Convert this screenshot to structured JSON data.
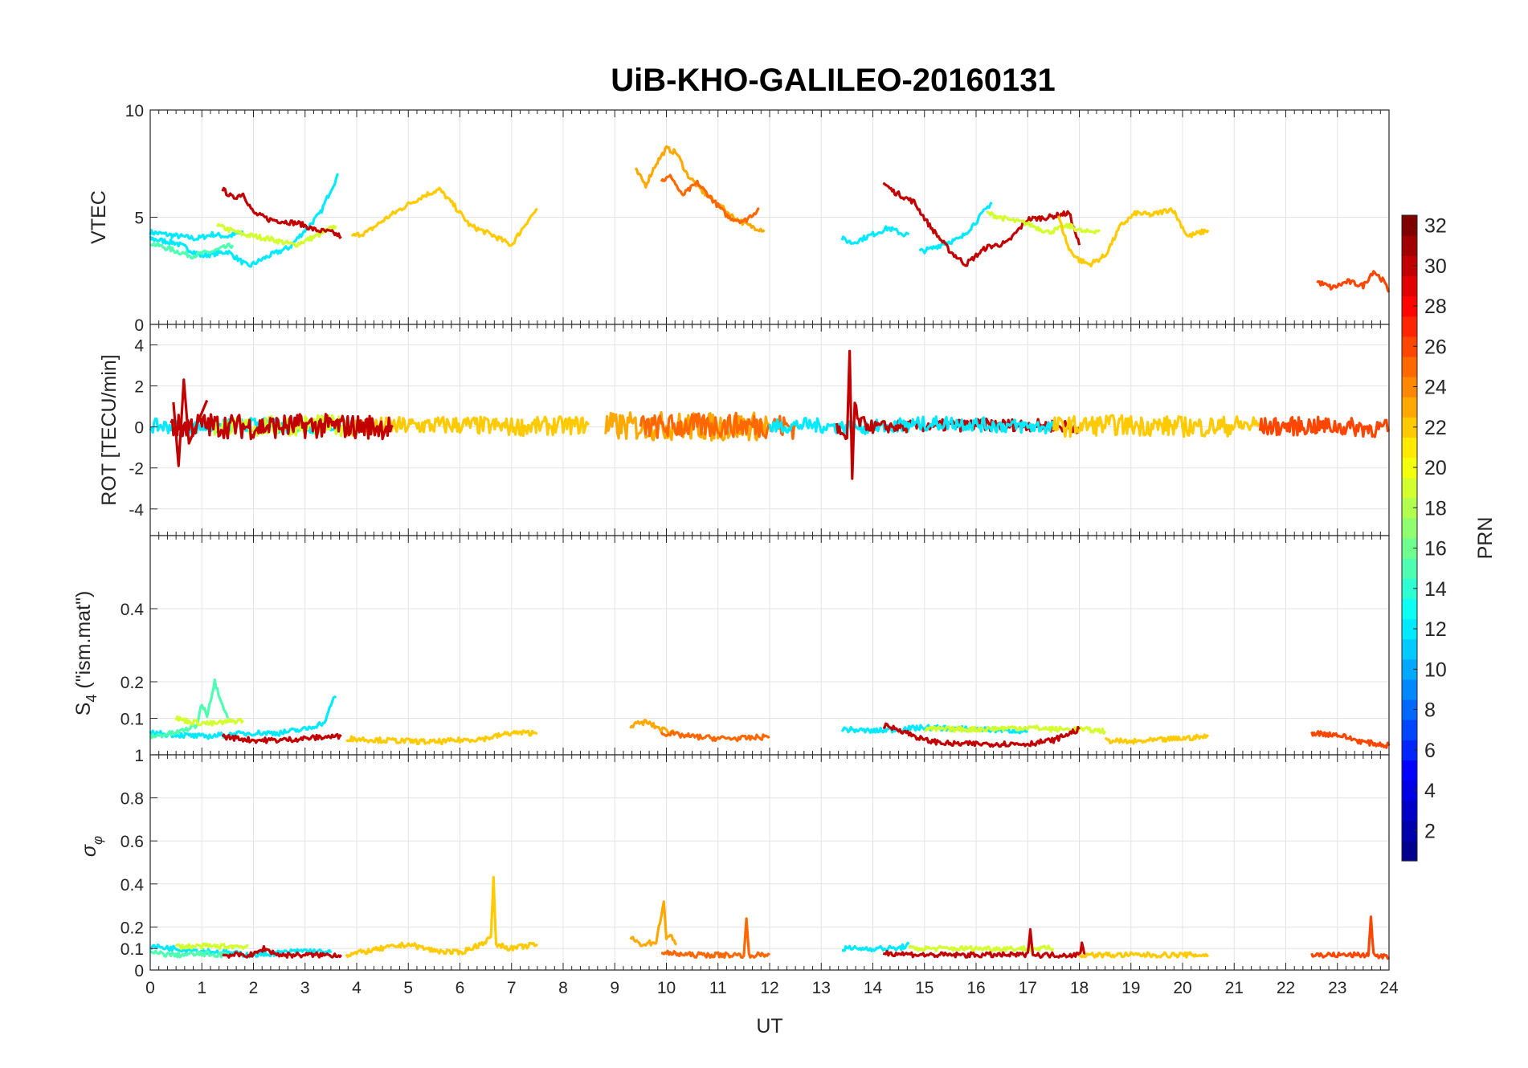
{
  "title": "UiB-KHO-GALILEO-20160131",
  "x_axis": {
    "label": "UT",
    "range": [
      0,
      24
    ],
    "ticks": [
      0,
      1,
      2,
      3,
      4,
      5,
      6,
      7,
      8,
      9,
      10,
      11,
      12,
      13,
      14,
      15,
      16,
      17,
      18,
      19,
      20,
      21,
      22,
      23,
      24
    ]
  },
  "colorbar": {
    "label": "PRN",
    "range": [
      1,
      32
    ],
    "ticks": [
      2,
      4,
      6,
      8,
      10,
      12,
      14,
      16,
      18,
      20,
      22,
      24,
      26,
      28,
      30,
      32
    ],
    "colormap": "jet",
    "colors": [
      "#00008f",
      "#0000ff",
      "#00ffff",
      "#ffff00",
      "#ff0000",
      "#800000"
    ]
  },
  "grid": true,
  "chart_data": [
    {
      "type": "line",
      "panel": "vtec",
      "ylabel": "VTEC",
      "ylim": [
        0,
        10
      ],
      "yticks": [
        0,
        5,
        10
      ],
      "series": [
        {
          "prn": 12,
          "x": [
            0.0,
            0.3,
            0.6,
            0.9,
            1.2,
            1.5,
            1.8
          ],
          "y": [
            4.3,
            4.2,
            4.1,
            4.0,
            4.2,
            4.1,
            4.3
          ]
        },
        {
          "prn": 12,
          "x": [
            0.0,
            0.5,
            1.0,
            1.5,
            1.9,
            2.3,
            2.7,
            3.0,
            3.3,
            3.5,
            3.65
          ],
          "y": [
            4.0,
            3.8,
            3.2,
            3.4,
            2.7,
            3.2,
            3.6,
            4.4,
            5.2,
            6.3,
            7.0
          ]
        },
        {
          "prn": 15,
          "x": [
            0.0,
            0.4,
            0.8,
            1.2,
            1.6
          ],
          "y": [
            3.8,
            3.5,
            3.2,
            3.4,
            3.7
          ]
        },
        {
          "prn": 19,
          "x": [
            1.3,
            1.8,
            2.3,
            2.8,
            3.2,
            3.6
          ],
          "y": [
            4.6,
            4.2,
            4.0,
            3.7,
            4.1,
            4.6
          ]
        },
        {
          "prn": 30,
          "x": [
            1.4,
            1.6,
            1.8,
            2.0,
            2.3,
            2.6,
            2.9,
            3.2,
            3.5,
            3.7
          ],
          "y": [
            6.3,
            5.9,
            6.1,
            5.2,
            4.9,
            4.8,
            4.7,
            4.4,
            4.3,
            4.1
          ]
        },
        {
          "prn": 22,
          "x": [
            3.9,
            4.2,
            4.6,
            5.0,
            5.3,
            5.6,
            5.9,
            6.2,
            6.6,
            7.0,
            7.3,
            7.5
          ],
          "y": [
            4.1,
            4.3,
            5.0,
            5.6,
            6.0,
            6.3,
            5.5,
            4.6,
            4.2,
            3.7,
            4.8,
            5.4
          ]
        },
        {
          "prn": 23,
          "x": [
            9.4,
            9.6,
            9.8,
            10.0,
            10.2,
            10.4,
            10.7,
            11.0,
            11.3,
            11.6,
            11.9
          ],
          "y": [
            7.2,
            6.5,
            7.5,
            8.2,
            8.0,
            7.0,
            6.2,
            5.6,
            5.0,
            4.6,
            4.4
          ]
        },
        {
          "prn": 25,
          "x": [
            9.9,
            10.1,
            10.3,
            10.6,
            10.9,
            11.2,
            11.5,
            11.8
          ],
          "y": [
            6.7,
            6.9,
            6.0,
            6.6,
            5.8,
            5.0,
            4.8,
            5.4
          ]
        },
        {
          "prn": 12,
          "x": [
            13.4,
            13.6,
            13.8,
            14.0,
            14.3,
            14.6,
            14.7
          ],
          "y": [
            4.0,
            3.8,
            4.0,
            4.2,
            4.5,
            4.2,
            4.2
          ]
        },
        {
          "prn": 12,
          "x": [
            14.9,
            15.1,
            15.4,
            15.7,
            16.0,
            16.3
          ],
          "y": [
            3.4,
            3.5,
            3.8,
            4.0,
            4.8,
            5.7
          ]
        },
        {
          "prn": 30,
          "x": [
            14.2,
            14.4,
            14.8,
            15.1,
            15.5,
            15.8,
            16.2,
            16.6,
            17.0,
            17.4,
            17.8,
            18.0
          ],
          "y": [
            6.6,
            6.2,
            5.7,
            4.6,
            3.4,
            2.8,
            3.6,
            3.8,
            4.9,
            5.0,
            5.2,
            3.7
          ]
        },
        {
          "prn": 19,
          "x": [
            16.2,
            16.6,
            17.0,
            17.4,
            17.8,
            18.1,
            18.4
          ],
          "y": [
            5.2,
            4.9,
            4.7,
            4.3,
            4.6,
            4.3,
            4.4
          ]
        },
        {
          "prn": 22,
          "x": [
            17.6,
            17.8,
            18.0,
            18.2,
            18.5,
            18.8,
            19.1,
            19.4,
            19.8,
            20.1,
            20.5
          ],
          "y": [
            5.0,
            3.5,
            3.0,
            2.8,
            3.2,
            4.6,
            5.2,
            5.1,
            5.4,
            4.1,
            4.4
          ]
        },
        {
          "prn": 26,
          "x": [
            22.6,
            22.9,
            23.2,
            23.5,
            23.7,
            23.9,
            24.0
          ],
          "y": [
            2.0,
            1.7,
            2.0,
            1.8,
            2.5,
            2.0,
            1.5
          ]
        }
      ]
    },
    {
      "type": "line",
      "panel": "rot",
      "ylabel": "ROT [TECU/min]",
      "ylim": [
        -5.3,
        5.0
      ],
      "yticks": [
        -4,
        -2,
        0,
        2,
        4
      ],
      "series": [
        {
          "prn": 12,
          "x": [
            0.0,
            1.0,
            2.0,
            3.0,
            3.7
          ],
          "y": [
            0.05,
            0.0,
            0.1,
            0.0,
            0.1
          ],
          "amp": 0.35
        },
        {
          "prn": 19,
          "x": [
            1.2,
            2.0,
            3.0,
            3.8
          ],
          "y": [
            0.05,
            0.0,
            0.1,
            0.05
          ],
          "amp": 0.5
        },
        {
          "prn": 22,
          "x": [
            3.8,
            5.0,
            6.0,
            7.0,
            8.5
          ],
          "y": [
            0.0,
            0.05,
            0.1,
            0.0,
            0.1
          ],
          "amp": 0.45
        },
        {
          "prn": 30,
          "x": [
            0.4,
            1.0,
            2.0,
            3.0,
            4.7
          ],
          "y": [
            0.0,
            0.1,
            0.0,
            0.05,
            0.0
          ],
          "amp": 0.6
        },
        {
          "prn": 30,
          "x": [
            0.45,
            0.55,
            0.65,
            0.75,
            1.1
          ],
          "y": [
            1.2,
            -1.9,
            2.3,
            -0.8,
            1.3
          ],
          "amp": 0.0
        },
        {
          "prn": 23,
          "x": [
            8.8,
            10.0,
            11.0,
            12.0
          ],
          "y": [
            0.0,
            0.05,
            0.0,
            0.05
          ],
          "amp": 0.7
        },
        {
          "prn": 25,
          "x": [
            9.5,
            10.5,
            11.5,
            12.5
          ],
          "y": [
            0.0,
            0.05,
            0.1,
            0.0
          ],
          "amp": 0.6
        },
        {
          "prn": 12,
          "x": [
            12.0,
            12.7,
            13.4,
            14.7
          ],
          "y": [
            0.0,
            0.1,
            0.0,
            0.0
          ],
          "amp": 0.35
        },
        {
          "prn": 30,
          "x": [
            13.3,
            13.5,
            13.55,
            13.6,
            13.65,
            13.7,
            14.0,
            15.0,
            16.0,
            17.0,
            18.0
          ],
          "y": [
            0.0,
            -0.8,
            3.7,
            -2.5,
            1.2,
            0.3,
            0.0,
            0.05,
            0.1,
            0.1,
            0.0
          ],
          "amp": 0.3
        },
        {
          "prn": 12,
          "x": [
            14.5,
            15.5,
            16.5,
            17.5
          ],
          "y": [
            0.1,
            0.2,
            0.05,
            0.0
          ],
          "amp": 0.35
        },
        {
          "prn": 22,
          "x": [
            17.5,
            18.5,
            19.5,
            20.5,
            21.5
          ],
          "y": [
            0.0,
            0.1,
            0.05,
            0.0,
            0.1
          ],
          "amp": 0.5
        },
        {
          "prn": 26,
          "x": [
            21.5,
            22.5,
            23.2,
            24.0
          ],
          "y": [
            0.0,
            0.05,
            0.0,
            -0.1
          ],
          "amp": 0.45
        }
      ]
    },
    {
      "type": "line",
      "panel": "s4",
      "ylabel": "S4 (\"ism.mat\")",
      "ylim": [
        0,
        0.6
      ],
      "yticks": [
        0.1,
        0.2,
        0.4
      ],
      "series": [
        {
          "prn": 12,
          "x": [
            0.0,
            0.5,
            1.0,
            1.5,
            2.0,
            2.5,
            3.0,
            3.4,
            3.5,
            3.6
          ],
          "y": [
            0.06,
            0.055,
            0.05,
            0.055,
            0.06,
            0.06,
            0.07,
            0.09,
            0.14,
            0.16
          ]
        },
        {
          "prn": 15,
          "x": [
            0.0,
            0.5,
            0.9,
            1.0,
            1.1,
            1.2,
            1.25,
            1.5
          ],
          "y": [
            0.05,
            0.06,
            0.08,
            0.14,
            0.11,
            0.17,
            0.2,
            0.1
          ]
        },
        {
          "prn": 19,
          "x": [
            0.5,
            0.8,
            1.2,
            1.5,
            1.8
          ],
          "y": [
            0.1,
            0.09,
            0.085,
            0.09,
            0.095
          ]
        },
        {
          "prn": 30,
          "x": [
            1.4,
            2.0,
            2.5,
            3.0,
            3.5,
            3.7
          ],
          "y": [
            0.05,
            0.04,
            0.04,
            0.045,
            0.05,
            0.05
          ]
        },
        {
          "prn": 22,
          "x": [
            3.8,
            4.5,
            5.5,
            6.5,
            7.0,
            7.5
          ],
          "y": [
            0.045,
            0.04,
            0.035,
            0.045,
            0.06,
            0.06
          ]
        },
        {
          "prn": 23,
          "x": [
            9.3,
            9.6,
            9.9,
            10.2
          ],
          "y": [
            0.08,
            0.09,
            0.07,
            0.06
          ]
        },
        {
          "prn": 25,
          "x": [
            9.9,
            10.5,
            11.0,
            11.5,
            12.0
          ],
          "y": [
            0.06,
            0.05,
            0.045,
            0.045,
            0.05
          ]
        },
        {
          "prn": 12,
          "x": [
            13.4,
            14.0,
            14.5,
            15.0,
            16.0,
            17.0
          ],
          "y": [
            0.07,
            0.065,
            0.07,
            0.075,
            0.07,
            0.065
          ]
        },
        {
          "prn": 19,
          "x": [
            15.0,
            16.0,
            17.0,
            17.5,
            18.0,
            18.5
          ],
          "y": [
            0.07,
            0.07,
            0.075,
            0.07,
            0.07,
            0.065
          ]
        },
        {
          "prn": 30,
          "x": [
            14.2,
            14.5,
            15.0,
            15.5,
            16.0,
            17.0,
            17.5,
            18.0
          ],
          "y": [
            0.08,
            0.07,
            0.04,
            0.03,
            0.03,
            0.03,
            0.04,
            0.07
          ]
        },
        {
          "prn": 22,
          "x": [
            18.5,
            19.0,
            19.5,
            20.0,
            20.5
          ],
          "y": [
            0.04,
            0.035,
            0.04,
            0.045,
            0.05
          ]
        },
        {
          "prn": 26,
          "x": [
            22.5,
            23.0,
            23.5,
            24.0
          ],
          "y": [
            0.06,
            0.055,
            0.035,
            0.025
          ]
        }
      ]
    },
    {
      "type": "line",
      "panel": "sigma_phi",
      "ylabel": "σφ",
      "ylim": [
        0,
        1
      ],
      "yticks": [
        0,
        0.1,
        0.2,
        0.4,
        0.6,
        0.8,
        1
      ],
      "series": [
        {
          "prn": 12,
          "x": [
            0.0,
            0.5,
            1.0,
            1.5,
            2.0,
            2.5,
            3.0,
            3.5
          ],
          "y": [
            0.11,
            0.1,
            0.09,
            0.08,
            0.07,
            0.08,
            0.09,
            0.08
          ]
        },
        {
          "prn": 15,
          "x": [
            0.0,
            0.5,
            1.0,
            1.5
          ],
          "y": [
            0.08,
            0.07,
            0.075,
            0.07
          ]
        },
        {
          "prn": 19,
          "x": [
            0.5,
            1.0,
            1.5,
            1.9
          ],
          "y": [
            0.11,
            0.11,
            0.11,
            0.11
          ]
        },
        {
          "prn": 30,
          "x": [
            1.4,
            2.0,
            2.2,
            2.5,
            3.0,
            3.7
          ],
          "y": [
            0.07,
            0.07,
            0.1,
            0.07,
            0.07,
            0.07
          ]
        },
        {
          "prn": 22,
          "x": [
            3.8,
            4.5,
            5.0,
            5.5,
            6.0,
            6.4,
            6.6,
            6.65,
            6.7,
            7.0,
            7.5
          ],
          "y": [
            0.07,
            0.1,
            0.12,
            0.09,
            0.08,
            0.12,
            0.15,
            0.42,
            0.12,
            0.1,
            0.12
          ]
        },
        {
          "prn": 23,
          "x": [
            9.3,
            9.5,
            9.8,
            9.95,
            10.0,
            10.1,
            10.2
          ],
          "y": [
            0.15,
            0.12,
            0.13,
            0.32,
            0.14,
            0.16,
            0.12
          ]
        },
        {
          "prn": 25,
          "x": [
            9.9,
            10.5,
            11.0,
            11.5,
            11.55,
            11.6,
            12.0
          ],
          "y": [
            0.08,
            0.07,
            0.07,
            0.07,
            0.23,
            0.07,
            0.07
          ]
        },
        {
          "prn": 12,
          "x": [
            13.4,
            14.0,
            14.5,
            14.7
          ],
          "y": [
            0.1,
            0.1,
            0.1,
            0.12
          ]
        },
        {
          "prn": 19,
          "x": [
            14.7,
            15.5,
            16.5,
            17.5
          ],
          "y": [
            0.1,
            0.1,
            0.1,
            0.1
          ]
        },
        {
          "prn": 30,
          "x": [
            14.2,
            15.0,
            16.0,
            17.0,
            17.05,
            17.1,
            18.0,
            18.05,
            18.1
          ],
          "y": [
            0.08,
            0.07,
            0.07,
            0.07,
            0.2,
            0.07,
            0.07,
            0.12,
            0.07
          ]
        },
        {
          "prn": 22,
          "x": [
            18.0,
            19.0,
            20.0,
            20.5
          ],
          "y": [
            0.07,
            0.07,
            0.07,
            0.07
          ]
        },
        {
          "prn": 26,
          "x": [
            22.5,
            23.0,
            23.5,
            23.6,
            23.65,
            23.7,
            24.0
          ],
          "y": [
            0.07,
            0.07,
            0.07,
            0.07,
            0.25,
            0.07,
            0.06
          ]
        }
      ]
    }
  ]
}
